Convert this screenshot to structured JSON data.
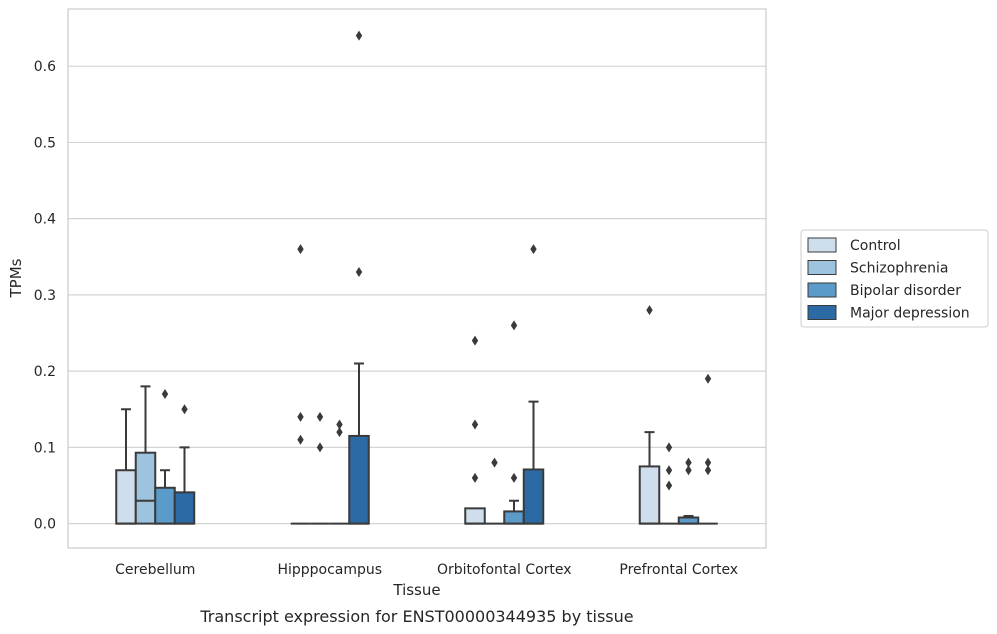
{
  "chart_data": {
    "type": "box",
    "title": "",
    "caption": "Transcript expression for ENST00000344935 by tissue",
    "xlabel": "Tissue",
    "ylabel": "TPMs",
    "ylim": [
      -0.032,
      0.675
    ],
    "yticks": [
      0.0,
      0.1,
      0.2,
      0.3,
      0.4,
      0.5,
      0.6
    ],
    "ytick_labels": [
      "0.0",
      "0.1",
      "0.2",
      "0.3",
      "0.4",
      "0.5",
      "0.6"
    ],
    "grid": "horizontal",
    "legend_placement": "center-right-outside",
    "categories": [
      "Cerebellum",
      "Hipppocampus",
      "Orbitofontal Cortex",
      "Prefrontal Cortex"
    ],
    "series": [
      {
        "name": "Control",
        "color": "#cfdeed",
        "boxes": [
          {
            "q1": 0.0,
            "median": 0.0,
            "q3": 0.07,
            "whisker_low": 0.0,
            "whisker_high": 0.15,
            "outliers": []
          },
          {
            "q1": 0.0,
            "median": 0.0,
            "q3": 0.0,
            "whisker_low": 0.0,
            "whisker_high": 0.0,
            "outliers": [
              0.36,
              0.14,
              0.11
            ]
          },
          {
            "q1": 0.0,
            "median": 0.0,
            "q3": 0.02,
            "whisker_low": 0.0,
            "whisker_high": 0.02,
            "outliers": [
              0.24,
              0.13,
              0.06
            ]
          },
          {
            "q1": 0.0,
            "median": 0.0,
            "q3": 0.075,
            "whisker_low": 0.0,
            "whisker_high": 0.12,
            "outliers": [
              0.28
            ]
          }
        ]
      },
      {
        "name": "Schizophrenia",
        "color": "#9dc3de",
        "boxes": [
          {
            "q1": 0.0,
            "median": 0.03,
            "q3": 0.093,
            "whisker_low": 0.0,
            "whisker_high": 0.18,
            "outliers": []
          },
          {
            "q1": 0.0,
            "median": 0.0,
            "q3": 0.0,
            "whisker_low": 0.0,
            "whisker_high": 0.0,
            "outliers": [
              0.14,
              0.1
            ]
          },
          {
            "q1": 0.0,
            "median": 0.0,
            "q3": 0.0,
            "whisker_low": 0.0,
            "whisker_high": 0.0,
            "outliers": [
              0.08
            ]
          },
          {
            "q1": 0.0,
            "median": 0.0,
            "q3": 0.0,
            "whisker_low": 0.0,
            "whisker_high": 0.0,
            "outliers": [
              0.1,
              0.07,
              0.05
            ]
          }
        ]
      },
      {
        "name": "Bipolar disorder",
        "color": "#5a9bca",
        "boxes": [
          {
            "q1": 0.0,
            "median": 0.0,
            "q3": 0.047,
            "whisker_low": 0.0,
            "whisker_high": 0.07,
            "outliers": [
              0.17
            ]
          },
          {
            "q1": 0.0,
            "median": 0.0,
            "q3": 0.0,
            "whisker_low": 0.0,
            "whisker_high": 0.0,
            "outliers": [
              0.13,
              0.12
            ]
          },
          {
            "q1": 0.0,
            "median": 0.0,
            "q3": 0.016,
            "whisker_low": 0.0,
            "whisker_high": 0.03,
            "outliers": [
              0.26,
              0.06
            ]
          },
          {
            "q1": 0.0,
            "median": 0.0,
            "q3": 0.008,
            "whisker_low": 0.0,
            "whisker_high": 0.01,
            "outliers": [
              0.08,
              0.07
            ]
          }
        ]
      },
      {
        "name": "Major depression",
        "color": "#2c6aa6",
        "boxes": [
          {
            "q1": 0.0,
            "median": 0.0,
            "q3": 0.041,
            "whisker_low": 0.0,
            "whisker_high": 0.1,
            "outliers": [
              0.15
            ]
          },
          {
            "q1": 0.0,
            "median": 0.0,
            "q3": 0.115,
            "whisker_low": 0.0,
            "whisker_high": 0.21,
            "outliers": [
              0.64,
              0.33
            ]
          },
          {
            "q1": 0.0,
            "median": 0.0,
            "q3": 0.071,
            "whisker_low": 0.0,
            "whisker_high": 0.16,
            "outliers": [
              0.36
            ]
          },
          {
            "q1": 0.0,
            "median": 0.0,
            "q3": 0.0,
            "whisker_low": 0.0,
            "whisker_high": 0.0,
            "outliers": [
              0.19,
              0.08,
              0.07
            ]
          }
        ]
      }
    ]
  }
}
